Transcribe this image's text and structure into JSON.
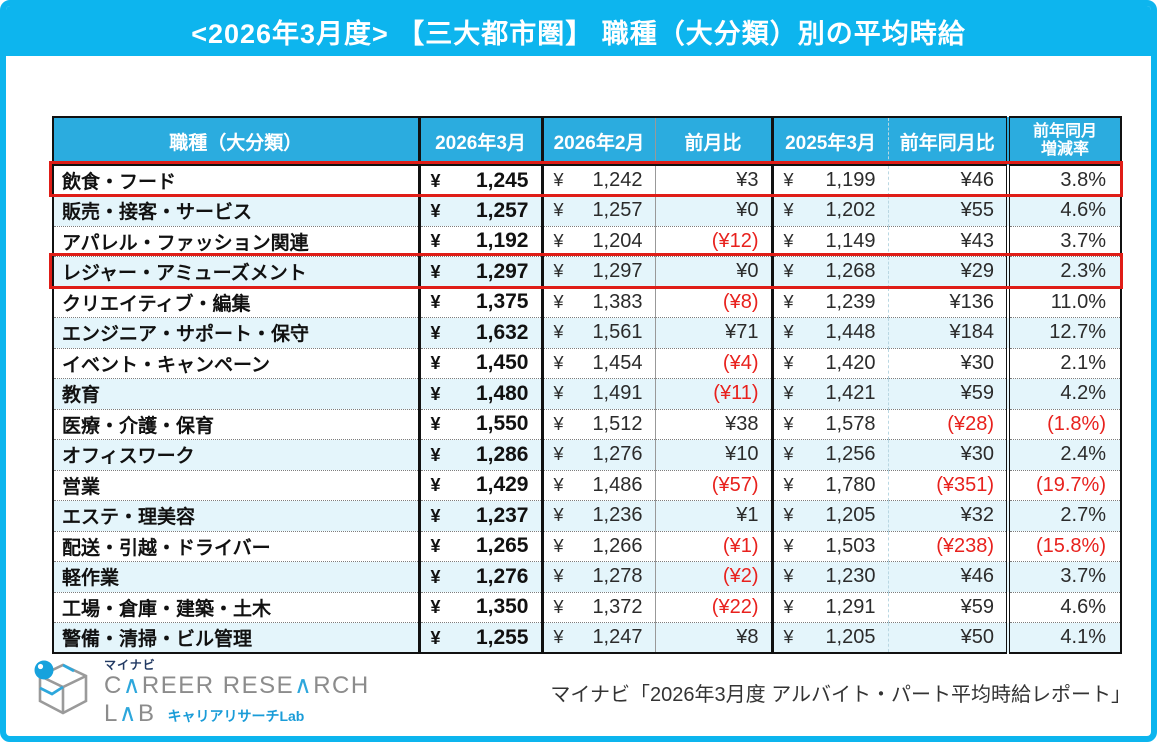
{
  "page": {
    "title": "<2026年3月度> 【三大都市圏】 職種（大分類）別の平均時給",
    "source_note": "マイナビ「2026年3月度 アルバイト・パート平均時給レポート」"
  },
  "colors": {
    "banner_cyan": "#0db5ee",
    "header_blue": "#2bacdf",
    "alt_row_blue": "#e4f5fb",
    "highlight_red": "#df1d17",
    "negative_red": "#e8211d",
    "logo_gray": "#8c8c8c",
    "logo_blue": "#2da7dc"
  },
  "logo": {
    "brand_small": "マイナビ",
    "line1": "C∧REER RESE∧RCH",
    "line2": "L∧B",
    "subtitle": "キャリアリサーチLab",
    "mark": "cube-wireframe-with-blue-sphere"
  },
  "table": {
    "headers": [
      "職種（大分類）",
      "2026年3月",
      "2026年2月",
      "前月比",
      "2025年3月",
      "前年同月比",
      "前年同月\n増減率"
    ],
    "rows": [
      {
        "category": "飲食・フード",
        "m3": "1,245",
        "m2": "1,242",
        "mom": "¥3",
        "m3prev": "1,199",
        "yoy": "¥46",
        "rate": "3.8%",
        "highlight": true
      },
      {
        "category": "販売・接客・サービス",
        "m3": "1,257",
        "m2": "1,257",
        "mom": "¥0",
        "m3prev": "1,202",
        "yoy": "¥55",
        "rate": "4.6%",
        "highlight": false
      },
      {
        "category": "アパレル・ファッション関連",
        "m3": "1,192",
        "m2": "1,204",
        "mom": "(¥12)",
        "m3prev": "1,149",
        "yoy": "¥43",
        "rate": "3.7%",
        "highlight": false
      },
      {
        "category": "レジャー・アミューズメント",
        "m3": "1,297",
        "m2": "1,297",
        "mom": "¥0",
        "m3prev": "1,268",
        "yoy": "¥29",
        "rate": "2.3%",
        "highlight": true
      },
      {
        "category": "クリエイティブ・編集",
        "m3": "1,375",
        "m2": "1,383",
        "mom": "(¥8)",
        "m3prev": "1,239",
        "yoy": "¥136",
        "rate": "11.0%",
        "highlight": false
      },
      {
        "category": "エンジニア・サポート・保守",
        "m3": "1,632",
        "m2": "1,561",
        "mom": "¥71",
        "m3prev": "1,448",
        "yoy": "¥184",
        "rate": "12.7%",
        "highlight": false
      },
      {
        "category": "イベント・キャンペーン",
        "m3": "1,450",
        "m2": "1,454",
        "mom": "(¥4)",
        "m3prev": "1,420",
        "yoy": "¥30",
        "rate": "2.1%",
        "highlight": false
      },
      {
        "category": "教育",
        "m3": "1,480",
        "m2": "1,491",
        "mom": "(¥11)",
        "m3prev": "1,421",
        "yoy": "¥59",
        "rate": "4.2%",
        "highlight": false
      },
      {
        "category": "医療・介護・保育",
        "m3": "1,550",
        "m2": "1,512",
        "mom": "¥38",
        "m3prev": "1,578",
        "yoy": "(¥28)",
        "rate": "(1.8%)",
        "highlight": false
      },
      {
        "category": "オフィスワーク",
        "m3": "1,286",
        "m2": "1,276",
        "mom": "¥10",
        "m3prev": "1,256",
        "yoy": "¥30",
        "rate": "2.4%",
        "highlight": false
      },
      {
        "category": "営業",
        "m3": "1,429",
        "m2": "1,486",
        "mom": "(¥57)",
        "m3prev": "1,780",
        "yoy": "(¥351)",
        "rate": "(19.7%)",
        "highlight": false
      },
      {
        "category": "エステ・理美容",
        "m3": "1,237",
        "m2": "1,236",
        "mom": "¥1",
        "m3prev": "1,205",
        "yoy": "¥32",
        "rate": "2.7%",
        "highlight": false
      },
      {
        "category": "配送・引越・ドライバー",
        "m3": "1,265",
        "m2": "1,266",
        "mom": "(¥1)",
        "m3prev": "1,503",
        "yoy": "(¥238)",
        "rate": "(15.8%)",
        "highlight": false
      },
      {
        "category": "軽作業",
        "m3": "1,276",
        "m2": "1,278",
        "mom": "(¥2)",
        "m3prev": "1,230",
        "yoy": "¥46",
        "rate": "3.7%",
        "highlight": false
      },
      {
        "category": "工場・倉庫・建築・土木",
        "m3": "1,350",
        "m2": "1,372",
        "mom": "(¥22)",
        "m3prev": "1,291",
        "yoy": "¥59",
        "rate": "4.6%",
        "highlight": false
      },
      {
        "category": "警備・清掃・ビル管理",
        "m3": "1,255",
        "m2": "1,247",
        "mom": "¥8",
        "m3prev": "1,205",
        "yoy": "¥50",
        "rate": "4.1%",
        "highlight": false
      }
    ]
  },
  "chart_data": {
    "type": "table",
    "title": "<2026年3月度> 【三大都市圏】 職種（大分類）別の平均時給",
    "columns": [
      "職種（大分類）",
      "2026年3月",
      "2026年2月",
      "前月比",
      "2025年3月",
      "前年同月比",
      "前年同月増減率"
    ],
    "rows": [
      [
        "飲食・フード",
        1245,
        1242,
        3,
        1199,
        46,
        3.8
      ],
      [
        "販売・接客・サービス",
        1257,
        1257,
        0,
        1202,
        55,
        4.6
      ],
      [
        "アパレル・ファッション関連",
        1192,
        1204,
        -12,
        1149,
        43,
        3.7
      ],
      [
        "レジャー・アミューズメント",
        1297,
        1297,
        0,
        1268,
        29,
        2.3
      ],
      [
        "クリエイティブ・編集",
        1375,
        1383,
        -8,
        1239,
        136,
        11.0
      ],
      [
        "エンジニア・サポート・保守",
        1632,
        1561,
        71,
        1448,
        184,
        12.7
      ],
      [
        "イベント・キャンペーン",
        1450,
        1454,
        -4,
        1420,
        30,
        2.1
      ],
      [
        "教育",
        1480,
        1491,
        -11,
        1421,
        59,
        4.2
      ],
      [
        "医療・介護・保育",
        1550,
        1512,
        38,
        1578,
        -28,
        -1.8
      ],
      [
        "オフィスワーク",
        1286,
        1276,
        10,
        1256,
        30,
        2.4
      ],
      [
        "営業",
        1429,
        1486,
        -57,
        1780,
        -351,
        -19.7
      ],
      [
        "エステ・理美容",
        1237,
        1236,
        1,
        1205,
        32,
        2.7
      ],
      [
        "配送・引越・ドライバー",
        1265,
        1266,
        -1,
        1503,
        -238,
        -15.8
      ],
      [
        "軽作業",
        1276,
        1278,
        -2,
        1230,
        46,
        3.7
      ],
      [
        "工場・倉庫・建築・土木",
        1350,
        1372,
        -22,
        1291,
        59,
        4.6
      ],
      [
        "警備・清掃・ビル管理",
        1255,
        1247,
        8,
        1205,
        50,
        4.1
      ]
    ],
    "units": {
      "wage": "JPY/hour",
      "rate": "percent"
    },
    "highlighted_rows": [
      "飲食・フード",
      "レジャー・アミューズメント"
    ],
    "notes": "values in parentheses shown in red = negative change"
  }
}
